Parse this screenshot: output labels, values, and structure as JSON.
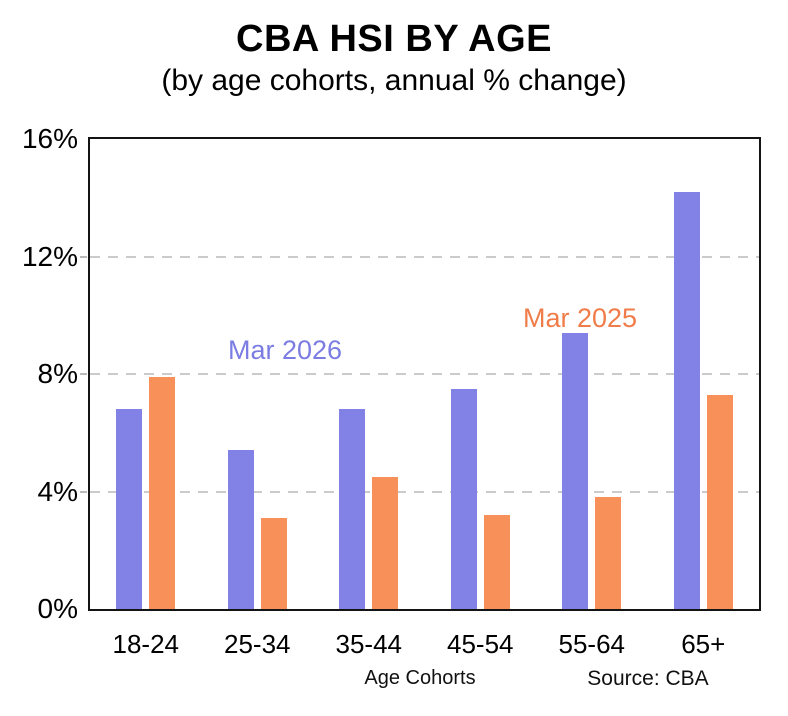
{
  "header": {
    "title": "CBA HSI BY AGE",
    "subtitle": "(by age cohorts, annual % change)"
  },
  "chart_data": {
    "type": "bar",
    "title": "CBA HSI BY AGE",
    "subtitle": "(by age cohorts, annual % change)",
    "categories": [
      "18-24",
      "25-34",
      "35-44",
      "45-54",
      "55-64",
      "65+"
    ],
    "series": [
      {
        "name": "Mar 2026",
        "color": "#8181e6",
        "label_color": "#7b7de2",
        "values": [
          6.8,
          5.4,
          6.8,
          7.5,
          9.4,
          14.2
        ]
      },
      {
        "name": "Mar 2025",
        "color": "#f8905a",
        "label_color": "#f07c49",
        "values": [
          7.9,
          3.1,
          4.5,
          3.2,
          3.8,
          7.3
        ]
      }
    ],
    "xlabel": "Age Cohorts",
    "ylabel": "",
    "ylim": [
      0,
      16
    ],
    "yticks": [
      "0%",
      "4%",
      "8%",
      "12%",
      "16%"
    ],
    "ytick_values": [
      0,
      4,
      8,
      12,
      16
    ],
    "gridlines": [
      4,
      8,
      12
    ],
    "grid_style": "dashed",
    "legend_position": "inside-top",
    "source": "Source: CBA",
    "colors": {
      "axis": "#141414",
      "grid": "#cbcbcb",
      "text": "#000000"
    }
  }
}
